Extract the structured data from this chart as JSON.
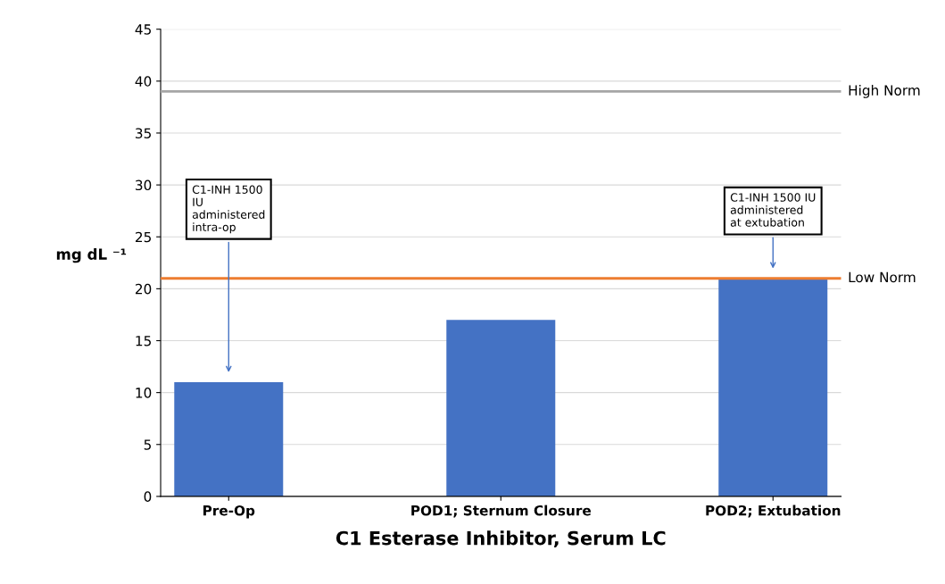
{
  "chart_data": {
    "type": "bar",
    "xlabel": "C1 Esterase Inhibitor, Serum LC",
    "ylabel": "mg dL ⁻¹",
    "categories": [
      "Pre-Op",
      "POD1; Sternum Closure",
      "POD2; Extubation"
    ],
    "values": [
      11,
      17,
      21
    ],
    "color": "#4472c4",
    "ylim": [
      0,
      45
    ],
    "yticks": [
      0,
      5,
      10,
      15,
      20,
      25,
      30,
      35,
      40,
      45
    ],
    "grid": "y",
    "legend": false,
    "ref_lines": [
      {
        "axis": "y",
        "value": 39,
        "label": "High Norm",
        "color": "#a6a6a6"
      },
      {
        "axis": "y",
        "value": 21,
        "label": "Low Norm",
        "color": "#ed7d31"
      }
    ],
    "annotations": [
      "C1-INH 1500\nIU\nadministered\nintra-op",
      "C1-INH 1500 IU\nadministered\nat extubation"
    ]
  }
}
